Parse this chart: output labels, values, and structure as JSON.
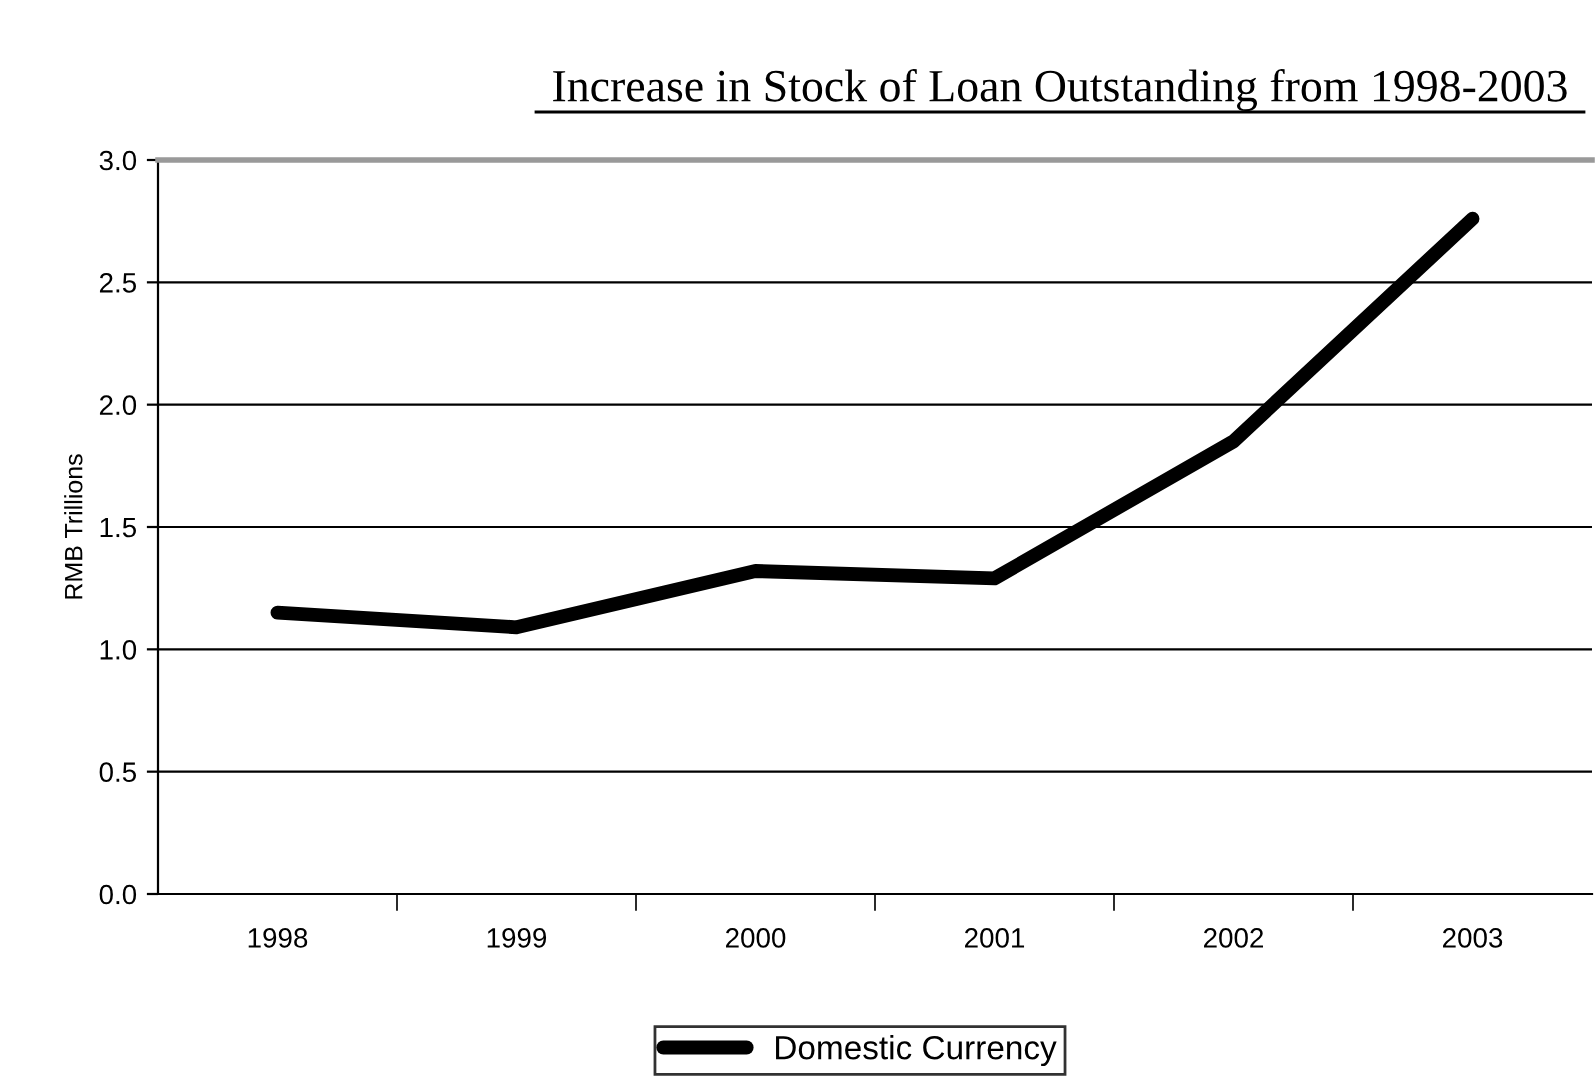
{
  "chart_data": {
    "type": "line",
    "title": "Increase in Stock of Loan Outstanding from 1998-2003",
    "ylabel": "RMB Trillions",
    "categories": [
      "1998",
      "1999",
      "2000",
      "2001",
      "2002",
      "2003"
    ],
    "series": [
      {
        "name": "Domestic Currency",
        "color": "#000000",
        "values": [
          1.15,
          1.09,
          1.32,
          1.29,
          1.85,
          2.76
        ]
      }
    ],
    "ylim": [
      0,
      3.0
    ],
    "yticks": [
      {
        "value": 0,
        "label": "0.0"
      },
      {
        "value": 0.5,
        "label": "0.5"
      },
      {
        "value": 1.0,
        "label": "1.0"
      },
      {
        "value": 1.5,
        "label": "1.5"
      },
      {
        "value": 2.0,
        "label": "2.0"
      },
      {
        "value": 2.5,
        "label": "2.5"
      },
      {
        "value": 3.0,
        "label": "3.0"
      }
    ],
    "grid": "y",
    "legend": "bottom",
    "marker": "none",
    "line_style": "solid"
  }
}
